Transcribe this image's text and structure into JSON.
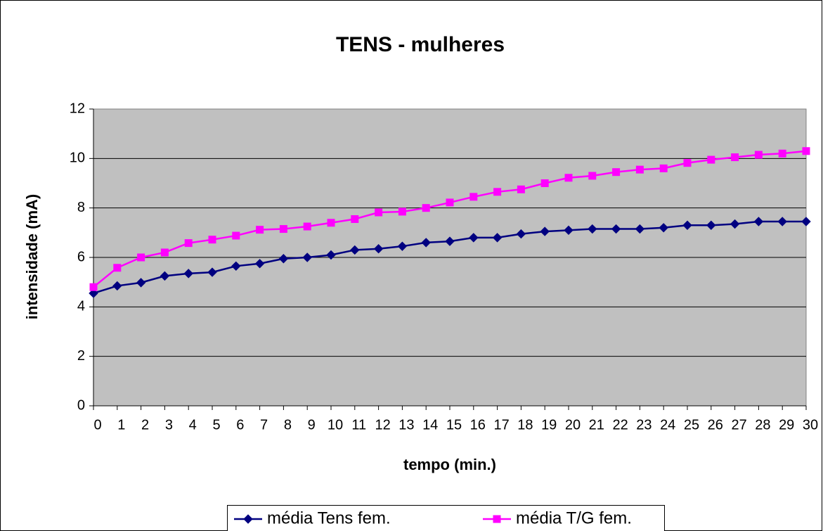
{
  "chart_data": {
    "type": "line",
    "title": "TENS - mulheres",
    "xlabel": "tempo (min.)",
    "ylabel": "intensidade (mA)",
    "x": [
      0,
      1,
      2,
      3,
      4,
      5,
      6,
      7,
      8,
      9,
      10,
      11,
      12,
      13,
      14,
      15,
      16,
      17,
      18,
      19,
      20,
      21,
      22,
      23,
      24,
      25,
      26,
      27,
      28,
      29,
      30
    ],
    "xlim": [
      0,
      30
    ],
    "xticks": [
      0,
      1,
      2,
      3,
      4,
      5,
      6,
      7,
      8,
      9,
      10,
      11,
      12,
      13,
      14,
      15,
      16,
      17,
      18,
      19,
      20,
      21,
      22,
      23,
      24,
      25,
      26,
      27,
      28,
      29,
      30
    ],
    "ylim": [
      0,
      12
    ],
    "yticks": [
      0,
      2,
      4,
      6,
      8,
      10,
      12
    ],
    "grid": true,
    "legend": "bottom",
    "series": [
      {
        "name": "média Tens fem.",
        "color": "#000080",
        "marker": "diamond",
        "values": [
          4.55,
          4.85,
          4.98,
          5.25,
          5.35,
          5.4,
          5.65,
          5.75,
          5.95,
          6.0,
          6.1,
          6.3,
          6.35,
          6.45,
          6.6,
          6.65,
          6.8,
          6.8,
          6.95,
          7.05,
          7.1,
          7.15,
          7.15,
          7.15,
          7.2,
          7.3,
          7.3,
          7.35,
          7.45,
          7.45,
          7.45
        ]
      },
      {
        "name": "média T/G fem.",
        "color": "#FF00FF",
        "marker": "square",
        "values": [
          4.8,
          5.58,
          6.0,
          6.2,
          6.58,
          6.72,
          6.88,
          7.12,
          7.15,
          7.25,
          7.4,
          7.55,
          7.82,
          7.85,
          8.0,
          8.22,
          8.45,
          8.65,
          8.75,
          9.0,
          9.22,
          9.3,
          9.45,
          9.55,
          9.6,
          9.82,
          9.95,
          10.05,
          10.15,
          10.2,
          10.3
        ]
      }
    ]
  }
}
